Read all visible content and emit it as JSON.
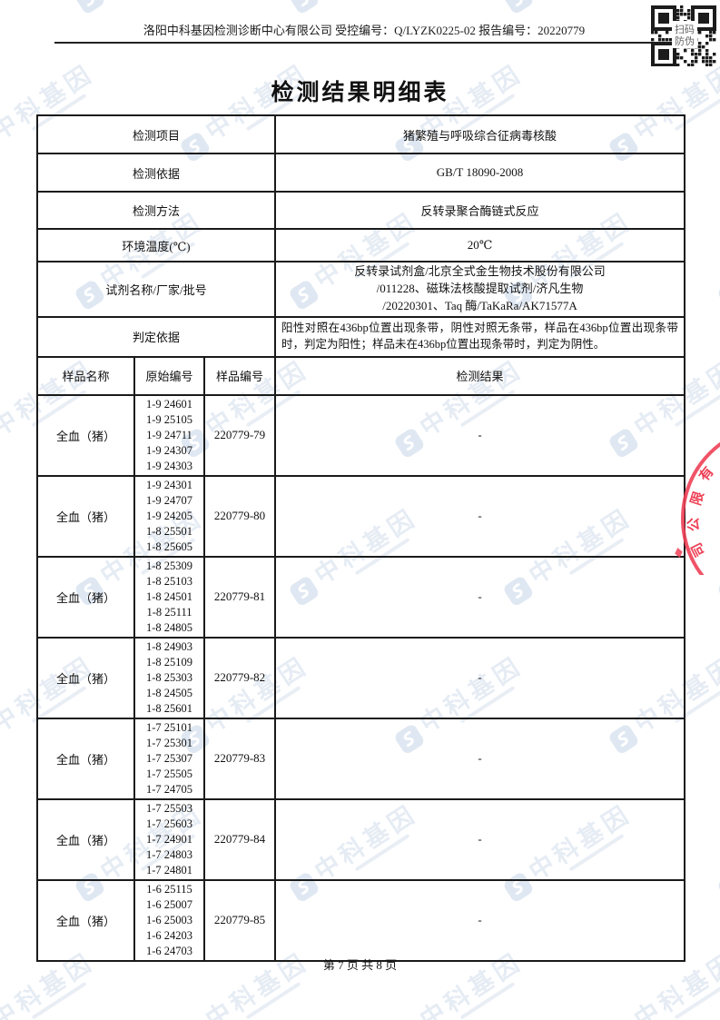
{
  "page": {
    "header": {
      "company_line": "洛阳中科基因检测诊断中心有限公司 受控编号：Q/LYZK0225-02 报告编号：20220779"
    },
    "qr": {
      "line1": "扫码",
      "line2": "防伪"
    },
    "title": "检测结果明细表",
    "footer": {
      "page_info": "第 7 页 共 8 页"
    }
  },
  "info_table": {
    "rows": [
      {
        "label": "检测项目",
        "value": "猪繁殖与呼吸综合征病毒核酸"
      },
      {
        "label": "检测依据",
        "value": "GB/T 18090-2008"
      },
      {
        "label": "检测方法",
        "value": "反转录聚合酶链式反应"
      },
      {
        "label": "环境温度(℃)",
        "value": "20℃"
      }
    ],
    "reagent_row": {
      "label": "试剂名称/厂家/批号",
      "value_lines": [
        "反转录试剂盒/北京全式金生物技术股份有限公司",
        "/011228、磁珠法核酸提取试剂/济凡生物",
        "/20220301、Taq 酶/TaKaRa/AK71577A"
      ]
    },
    "judgement_row": {
      "label": "判定依据",
      "value": "阳性对照在436bp位置出现条带，阴性对照无条带，样品在436bp位置出现条带时，判定为阳性；样品未在436bp位置出现条带时，判定为阴性。"
    }
  },
  "sample_table": {
    "headers": {
      "name": "样品名称",
      "original": "原始编号",
      "sample_no": "样品编号",
      "result": "检测结果"
    },
    "rows": [
      {
        "name": "全血（猪）",
        "orig": [
          "1-9 24601",
          "1-9 25105",
          "1-9 24711",
          "1-9 24307",
          "1-9 24303"
        ],
        "no": "220779-79",
        "result": "-"
      },
      {
        "name": "全血（猪）",
        "orig": [
          "1-9 24301",
          "1-9 24707",
          "1-9 24205",
          "1-8 25501",
          "1-8 25605"
        ],
        "no": "220779-80",
        "result": "-"
      },
      {
        "name": "全血（猪）",
        "orig": [
          "1-8 25309",
          "1-8 25103",
          "1-8 24501",
          "1-8 25111",
          "1-8 24805"
        ],
        "no": "220779-81",
        "result": "-"
      },
      {
        "name": "全血（猪）",
        "orig": [
          "1-8 24903",
          "1-8 25109",
          "1-8 25303",
          "1-8 24505",
          "1-8 25601"
        ],
        "no": "220779-82",
        "result": "-"
      },
      {
        "name": "全血（猪）",
        "orig": [
          "1-7 25101",
          "1-7 25301",
          "1-7 25307",
          "1-7 25505",
          "1-7 24705"
        ],
        "no": "220779-83",
        "result": "-"
      },
      {
        "name": "全血（猪）",
        "orig": [
          "1-7 25503",
          "1-7 25603",
          "1-7 24901",
          "1-7 24803",
          "1-7 24801"
        ],
        "no": "220779-84",
        "result": "-"
      },
      {
        "name": "全血（猪）",
        "orig": [
          "1-6 25115",
          "1-6 25007",
          "1-6 25003",
          "1-6 24203",
          "1-6 24703"
        ],
        "no": "220779-85",
        "result": "-"
      }
    ]
  },
  "watermark": {
    "text": "中科基因",
    "color": "#e6ecf4"
  },
  "stamp": {
    "visible_text": "有限公司",
    "color": "#ee4056"
  }
}
